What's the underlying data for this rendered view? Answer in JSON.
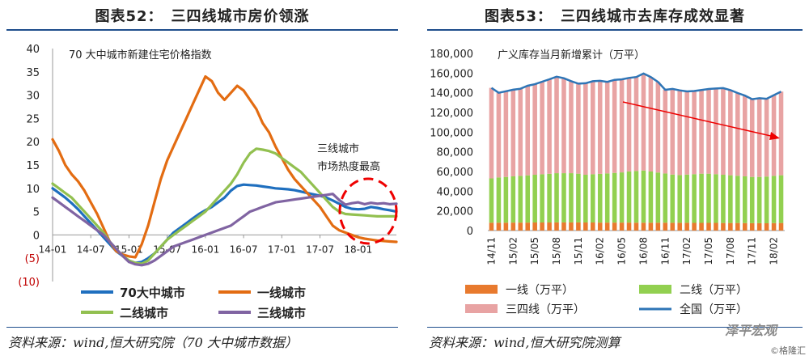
{
  "left": {
    "title": "图表52：　三四线城市房价领涨",
    "source": "资料来源：wind,恒大研究院（70 大中城市数据）",
    "chart_data": {
      "type": "line",
      "inner_title": "70 大中城市新建住宅价格指数",
      "annotation": "三线城市\n市场热度最高",
      "yticks": [
        "40",
        "35",
        "30",
        "25",
        "20",
        "15",
        "10",
        "5",
        "0",
        "(5)",
        "(10)"
      ],
      "ytick_values": [
        40,
        35,
        30,
        25,
        20,
        15,
        10,
        5,
        0,
        -5,
        -10
      ],
      "ylim": [
        -10,
        40
      ],
      "xticks": [
        "14-01",
        "14-07",
        "15-01",
        "15-07",
        "16-01",
        "16-07",
        "17-01",
        "17-07",
        "18-01"
      ],
      "xtick_index": [
        0,
        6,
        12,
        18,
        24,
        30,
        36,
        42,
        48
      ],
      "n_points": 55,
      "series": [
        {
          "name": "70大中城市",
          "color": "#1f6fbf",
          "values": [
            10,
            9,
            8,
            6.8,
            5.5,
            4,
            2.5,
            1,
            -0.5,
            -2,
            -3.5,
            -4.5,
            -5.5,
            -6,
            -5.8,
            -5,
            -4,
            -2.5,
            -1,
            0.5,
            1.5,
            2.5,
            3.5,
            4.5,
            5.3,
            6,
            7,
            8,
            9.5,
            10.5,
            10.8,
            10.7,
            10.6,
            10.4,
            10.2,
            10,
            9.9,
            9.8,
            9.6,
            9.3,
            9,
            8.7,
            8.4,
            8,
            7.4,
            6.7,
            6,
            5.6,
            5.5,
            5.6,
            6,
            5.8,
            5.5,
            5.3,
            5
          ]
        },
        {
          "name": "一线城市",
          "color": "#e36c12",
          "values": [
            20.5,
            18,
            15,
            13,
            11.5,
            9.5,
            7,
            4.5,
            1.5,
            -1.5,
            -3.5,
            -4.2,
            -4.6,
            -4.8,
            -2,
            2,
            7,
            12,
            16,
            19,
            22,
            25,
            28,
            31,
            34,
            33,
            30.5,
            29,
            30.5,
            32,
            31,
            29,
            27,
            24,
            22,
            19,
            16.5,
            14,
            12,
            10.5,
            9,
            7.5,
            6,
            4,
            2,
            1,
            0.5,
            0,
            -0.5,
            -0.8,
            -1,
            -1.2,
            -1.3,
            -1.4,
            -1.5
          ]
        },
        {
          "name": "二线城市",
          "color": "#92c050",
          "values": [
            11,
            10,
            9,
            8,
            6.5,
            5,
            3.5,
            2,
            0.5,
            -1.5,
            -3,
            -4.5,
            -5.5,
            -6,
            -6.2,
            -5.5,
            -4,
            -2.5,
            -1,
            0,
            1,
            2,
            3,
            4,
            5,
            6.5,
            8,
            9.5,
            11,
            13,
            15.5,
            17.5,
            18.5,
            18.3,
            18,
            17.5,
            16.5,
            15.5,
            14.5,
            13.5,
            12,
            10.5,
            9,
            7.5,
            6,
            5,
            4.5,
            4.4,
            4.3,
            4.2,
            4.1,
            4,
            4,
            4,
            4
          ]
        },
        {
          "name": "三线城市",
          "color": "#8064a2",
          "values": [
            8,
            7,
            6,
            5,
            4,
            3,
            2,
            1,
            0,
            -1.5,
            -3,
            -4.5,
            -5.8,
            -6.3,
            -6.5,
            -6.2,
            -5.5,
            -4.5,
            -3.5,
            -2.5,
            -2,
            -1.5,
            -1,
            -0.5,
            0,
            0.5,
            1,
            1.5,
            2,
            3,
            4,
            5,
            5.5,
            6,
            6.5,
            7,
            7.2,
            7.4,
            7.6,
            7.8,
            8,
            8.2,
            8.4,
            8.6,
            8.8,
            7.5,
            6.5,
            6.8,
            7,
            6.6,
            6.9,
            6.7,
            6.8,
            6.6,
            6.7
          ]
        }
      ],
      "legend": [
        "70大中城市",
        "一线城市",
        "二线城市",
        "三线城市"
      ],
      "legend_position": "bottom"
    }
  },
  "right": {
    "title": "图表53：　三四线城市去库存成效显著",
    "source": "资料来源：wind,恒大研究院测算",
    "chart_data": {
      "type": "bar",
      "stacked": true,
      "inner_title": "广义库存当月新增累计（万平）",
      "yticks": [
        "180,000",
        "160,000",
        "140,000",
        "120,000",
        "100,000",
        "80,000",
        "60,000",
        "40,000",
        "20,000",
        "0"
      ],
      "ytick_values": [
        180000,
        160000,
        140000,
        120000,
        100000,
        80000,
        60000,
        40000,
        20000,
        0
      ],
      "ylim": [
        0,
        180000
      ],
      "xticks": [
        "14/11",
        "15/02",
        "15/05",
        "15/08",
        "15/11",
        "16/02",
        "16/05",
        "16/08",
        "16/11",
        "17/02",
        "17/05",
        "17/08",
        "17/11",
        "18/02"
      ],
      "xtick_index": [
        0,
        3,
        6,
        9,
        12,
        15,
        18,
        21,
        24,
        27,
        30,
        33,
        36,
        39
      ],
      "n_bars": 41,
      "series": [
        {
          "name": "一线（万平）",
          "color": "#e87a2e",
          "values": [
            8000,
            8000,
            8000,
            8100,
            8100,
            8100,
            8200,
            8200,
            8200,
            8300,
            8300,
            8300,
            8300,
            8200,
            8200,
            8100,
            8100,
            8100,
            8100,
            8100,
            8000,
            8000,
            8000,
            8000,
            8000,
            7900,
            7900,
            7900,
            7800,
            7800,
            7800,
            7800,
            7700,
            7700,
            7700,
            7600,
            7500,
            7500,
            7400,
            7600,
            7700
          ]
        },
        {
          "name": "二线（万平）",
          "color": "#92d050",
          "values": [
            45000,
            46000,
            46500,
            47000,
            47500,
            48000,
            48500,
            49000,
            49500,
            50000,
            50000,
            50000,
            49500,
            48500,
            49000,
            49500,
            50000,
            50500,
            51000,
            52000,
            52500,
            53000,
            52000,
            51000,
            50000,
            49000,
            48500,
            49000,
            49500,
            50000,
            50000,
            49500,
            49000,
            48500,
            48000,
            47500,
            47000,
            47000,
            47500,
            48000,
            48500
          ]
        },
        {
          "name": "三四线（万平）",
          "color": "#e8a3a3",
          "values": [
            92000,
            86000,
            87000,
            88000,
            88500,
            91000,
            92000,
            94000,
            96000,
            98000,
            96500,
            93500,
            91500,
            93000,
            94500,
            94500,
            93000,
            94500,
            94500,
            95000,
            95500,
            98500,
            96000,
            92000,
            85000,
            87000,
            86000,
            84500,
            84500,
            85000,
            86000,
            87000,
            88000,
            86500,
            84000,
            82000,
            79000,
            80000,
            79000,
            82000,
            85000
          ]
        },
        {
          "name": "全国（万平）",
          "color": "#2e75b6",
          "values": [
            145000,
            140000,
            141500,
            143100,
            144100,
            147100,
            148700,
            151200,
            153700,
            156300,
            154800,
            151800,
            149300,
            149700,
            151700,
            152100,
            151100,
            153100,
            153600,
            155100,
            156000,
            159500,
            156000,
            151000,
            143000,
            143900,
            142400,
            141400,
            141800,
            142800,
            143800,
            144300,
            144700,
            142700,
            139700,
            137100,
            133500,
            134500,
            133900,
            137600,
            141200
          ]
        }
      ],
      "legend": [
        "一线（万平）",
        "二线（万平）",
        "三四线（万平）",
        "全国（万平）"
      ],
      "legend_position": "bottom",
      "watermark": "泽平宏观",
      "watermark_small": "©格隆汇"
    }
  }
}
